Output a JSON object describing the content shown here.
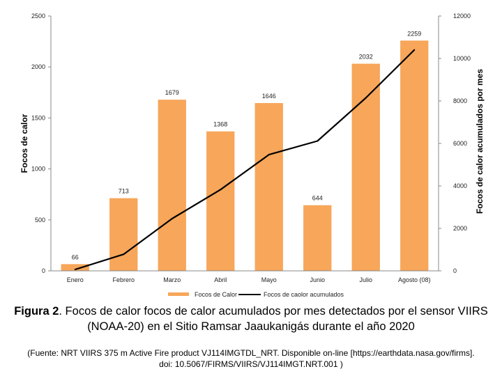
{
  "chart_data": {
    "type": "bar",
    "categories": [
      "Enero",
      "Febrero",
      "Marzo",
      "Abril",
      "Mayo",
      "Junio",
      "Julio",
      "Agosto (08)"
    ],
    "series": [
      {
        "name": "Focos de Calor",
        "type": "bar",
        "axis": "left",
        "color": "#F7A65A",
        "values": [
          66,
          713,
          1679,
          1368,
          1646,
          644,
          2032,
          2259
        ]
      },
      {
        "name": "Focos de caolor acumulados",
        "type": "line",
        "axis": "right",
        "color": "#000000",
        "values": [
          66,
          779,
          2458,
          3826,
          5472,
          6116,
          8148,
          10407
        ]
      }
    ],
    "data_labels": [
      "66",
      "713",
      "1679",
      "1368",
      "1646",
      "644",
      "2032",
      "2259"
    ],
    "ylabel": "Focos de calor",
    "y2label": "Focos de calor acumulados por mes",
    "ylim": [
      0,
      2500
    ],
    "y2lim": [
      0,
      12000
    ],
    "yticks": [
      "0",
      "500",
      "1000",
      "1500",
      "2000",
      "2500"
    ],
    "y2ticks": [
      "0",
      "2000",
      "4000",
      "6000",
      "8000",
      "10000",
      "12000"
    ],
    "grid": false,
    "legend_position": "bottom"
  },
  "caption": {
    "label": "Figura 2",
    "text": ". Focos de calor focos de calor acumulados por mes detectados por el sensor VIIRS (NOAA-20) en el Sitio Ramsar Jaaukanigás durante el año 2020"
  },
  "source": {
    "line1": "(Fuente: NRT VIIRS 375 m Active Fire product VJ114IMGTDL_NRT. Disponible on-line [https://earthdata.nasa.gov/firms].",
    "line2": "doi: 10.5067/FIRMS/VIIRS/VJ114IMGT.NRT.001  )"
  }
}
